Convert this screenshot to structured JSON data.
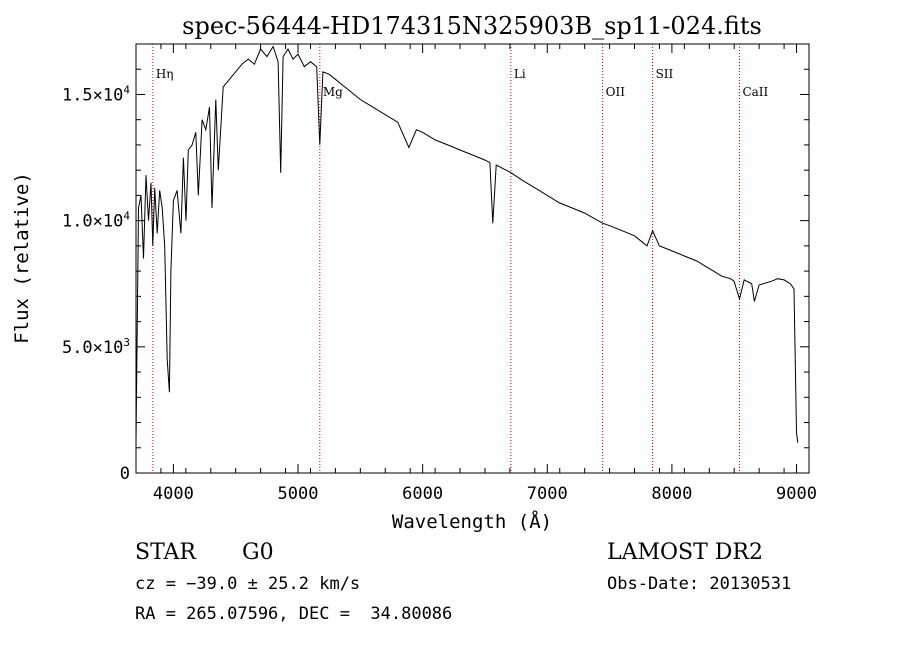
{
  "chart_data": {
    "type": "line",
    "title": "spec-56444-HD174315N325903B_sp11-024.fits",
    "xlabel": "Wavelength (Å)",
    "ylabel": "Flux (relative)",
    "xlim": [
      3700,
      9100
    ],
    "ylim": [
      0,
      17000
    ],
    "xticks": [
      4000,
      5000,
      6000,
      7000,
      8000,
      9000
    ],
    "xtick_labels": [
      "4000",
      "5000",
      "6000",
      "7000",
      "8000",
      "9000"
    ],
    "yticks": [
      0,
      5000,
      10000,
      15000
    ],
    "ytick_labels": [
      {
        "mantissa": "0",
        "exp": ""
      },
      {
        "mantissa": "5.0×10",
        "exp": "3"
      },
      {
        "mantissa": "1.0×10",
        "exp": "4"
      },
      {
        "mantissa": "1.5×10",
        "exp": "4"
      }
    ],
    "grid": false,
    "line_color": "#000000",
    "marker_color": "#cc0000",
    "lines": [
      {
        "label": "Hη",
        "x": 3835
      },
      {
        "label": "Mg",
        "x": 5175
      },
      {
        "label": "Li",
        "x": 6708
      },
      {
        "label": "OII",
        "x": 7444
      },
      {
        "label": "SII",
        "x": 7845
      },
      {
        "label": "CaII",
        "x": 8542
      }
    ],
    "series": [
      {
        "x": [
          3700,
          3720,
          3740,
          3760,
          3780,
          3800,
          3820,
          3835,
          3850,
          3870,
          3890,
          3910,
          3930,
          3950,
          3968,
          3980,
          4000,
          4030,
          4060,
          4080,
          4101,
          4120,
          4150,
          4180,
          4200,
          4230,
          4260,
          4290,
          4310,
          4340,
          4360,
          4400,
          4450,
          4500,
          4550,
          4600,
          4650,
          4700,
          4750,
          4800,
          4840,
          4861,
          4880,
          4920,
          4960,
          5000,
          5050,
          5100,
          5150,
          5175,
          5200,
          5250,
          5300,
          5350,
          5400,
          5450,
          5500,
          5600,
          5700,
          5800,
          5890,
          5950,
          6000,
          6100,
          6200,
          6300,
          6400,
          6500,
          6540,
          6563,
          6590,
          6650,
          6708,
          6800,
          6900,
          7000,
          7100,
          7200,
          7300,
          7444,
          7500,
          7600,
          7700,
          7800,
          7845,
          7900,
          8000,
          8100,
          8200,
          8300,
          8400,
          8470,
          8498,
          8542,
          8580,
          8640,
          8662,
          8700,
          8800,
          8850,
          8900,
          8950,
          8980,
          9000,
          9010
        ],
        "y": [
          1200,
          10500,
          11000,
          8500,
          11800,
          10000,
          11500,
          9000,
          11300,
          9500,
          11200,
          10500,
          9000,
          4500,
          3200,
          8000,
          10800,
          11200,
          9500,
          12500,
          10000,
          12800,
          13000,
          13500,
          11000,
          14000,
          13600,
          14500,
          10500,
          14800,
          12000,
          15300,
          15600,
          15900,
          16200,
          16400,
          16200,
          16800,
          16500,
          16900,
          16300,
          11900,
          16500,
          16800,
          16400,
          16600,
          16100,
          16300,
          16100,
          13000,
          15900,
          15800,
          15600,
          15400,
          15200,
          15000,
          14800,
          14500,
          14200,
          13900,
          12900,
          13600,
          13500,
          13200,
          13000,
          12800,
          12600,
          12400,
          12300,
          9900,
          12200,
          12050,
          11900,
          11600,
          11300,
          11000,
          10700,
          10500,
          10300,
          9900,
          9800,
          9600,
          9400,
          9000,
          9600,
          9000,
          8800,
          8600,
          8400,
          8100,
          7800,
          7700,
          7600,
          6900,
          7650,
          7500,
          6800,
          7450,
          7600,
          7700,
          7650,
          7500,
          7300,
          1600,
          1200
        ]
      }
    ]
  },
  "info": {
    "object_type": "STAR",
    "subclass": "G0",
    "survey": "LAMOST DR2",
    "redshift": "cz = −39.0 ± 25.2 km/s",
    "obs_date": "Obs-Date: 20130531",
    "coords": "RA = 265.07596, DEC =  34.80086"
  }
}
